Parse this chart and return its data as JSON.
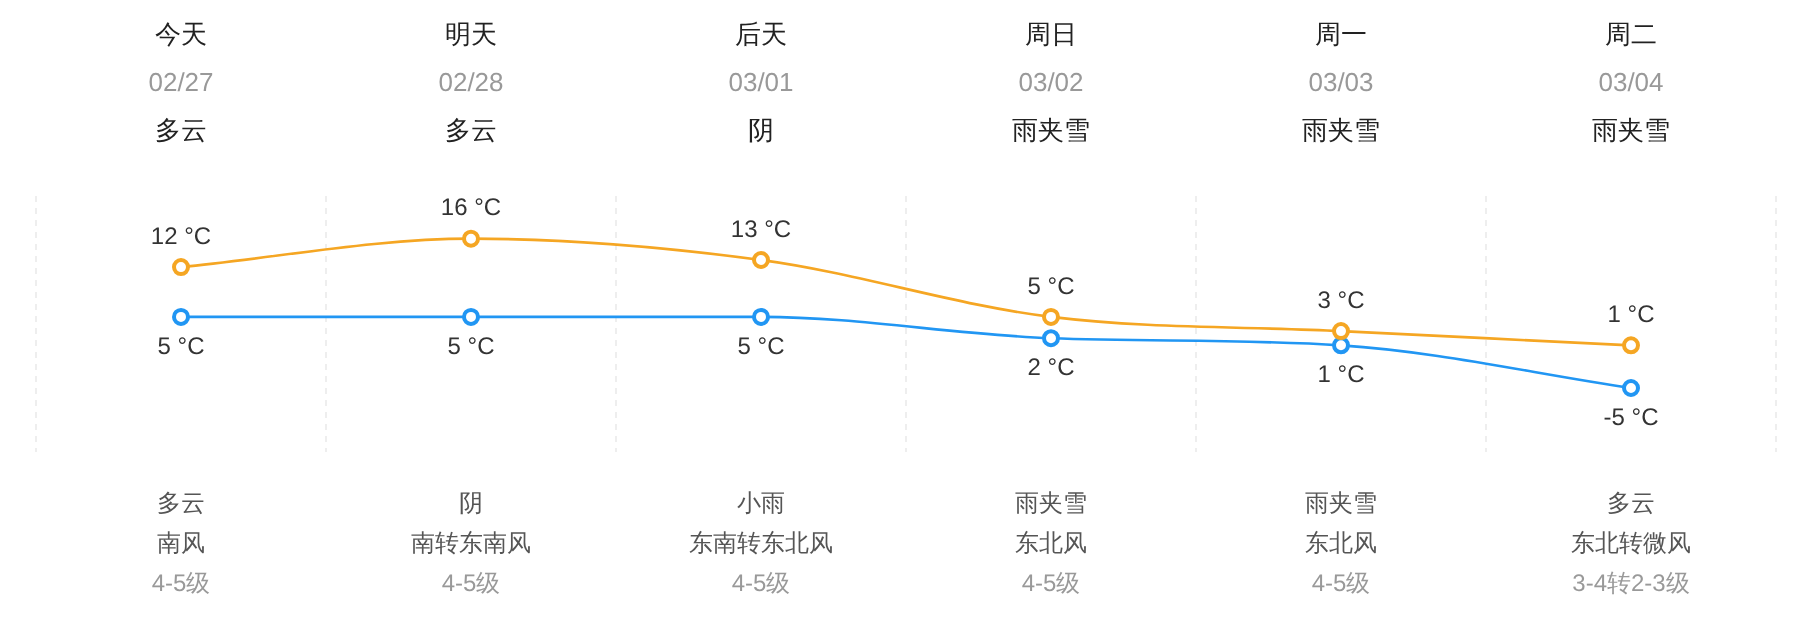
{
  "chart_data": {
    "type": "line",
    "categories": [
      "今天\n02/27\n多云",
      "明天\n02/28\n多云",
      "后天\n03/01\n阴",
      "周日\n03/02\n雨夹雪",
      "周一\n03/03\n雨夹雪",
      "周二\n03/04\n雨夹雪"
    ],
    "series": [
      {
        "color": "#f5a623",
        "values": [
          12,
          16,
          13,
          5,
          3,
          1
        ],
        "value_labels": [
          "12 °C",
          "16 °C",
          "13 °C",
          "5 °C",
          "3 °C",
          "1 °C"
        ]
      },
      {
        "color": "#2196f3",
        "values": [
          5,
          5,
          5,
          2,
          1,
          -5
        ],
        "value_labels": [
          "5 °C",
          "5 °C",
          "5 °C",
          "2 °C",
          "1 °C",
          "-5 °C"
        ]
      }
    ],
    "annotations": [
      "多云",
      "南风",
      "4-5级",
      "阴",
      "南转东南风",
      "4-5级",
      "小雨",
      "东南转东北风",
      "4-5级",
      "雨夹雪",
      "东北风",
      "4-5级",
      "雨夹雪",
      "东北风",
      "4-5级",
      "多云",
      "东北转微风",
      "3-4转2-3级"
    ],
    "ylim": [
      -14,
      22
    ],
    "tick_labels": "x",
    "grid": "x",
    "marker": "circle",
    "line_style": "solid"
  }
}
